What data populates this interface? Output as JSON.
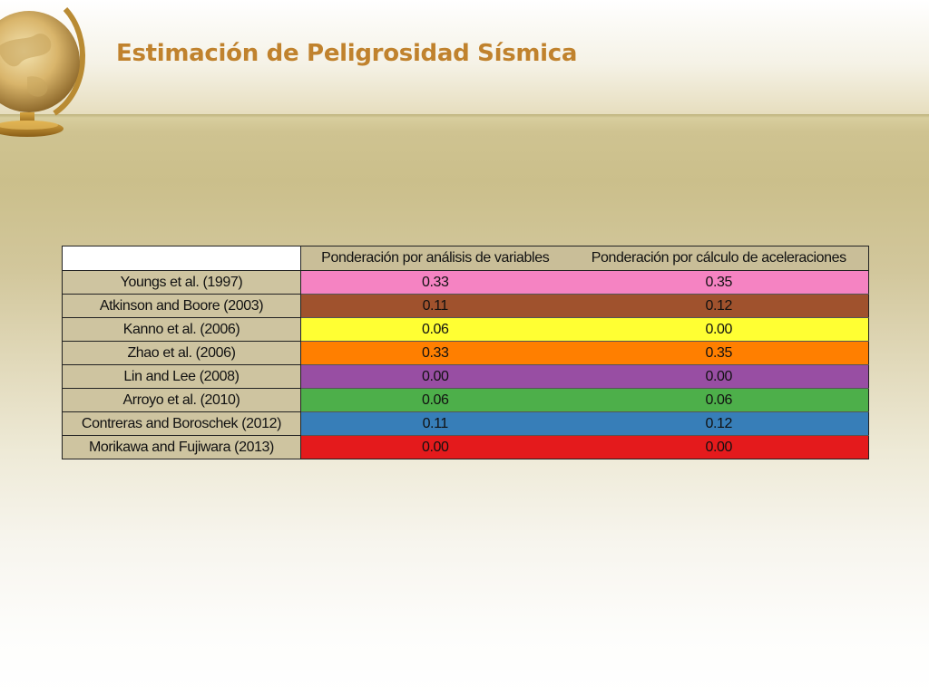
{
  "slide": {
    "title": "Estimación de Peligrosidad Sísmica"
  },
  "table": {
    "corner_label": "",
    "columns": [
      "Ponderación por análisis de variables",
      "Ponderación por cálculo de aceleraciones"
    ],
    "rows": [
      {
        "model": "Youngs et al. (1997)",
        "values": [
          "0.33",
          "0.35"
        ],
        "color": "#f583c2"
      },
      {
        "model": "Atkinson and Boore (2003)",
        "values": [
          "0.11",
          "0.12"
        ],
        "color": "#a0522d"
      },
      {
        "model": "Kanno et al. (2006)",
        "values": [
          "0.06",
          "0.00"
        ],
        "color": "#ffff33"
      },
      {
        "model": "Zhao et al. (2006)",
        "values": [
          "0.33",
          "0.35"
        ],
        "color": "#ff7f00"
      },
      {
        "model": "Lin and Lee (2008)",
        "values": [
          "0.00",
          "0.00"
        ],
        "color": "#984ea3"
      },
      {
        "model": "Arroyo et al. (2010)",
        "values": [
          "0.06",
          "0.06"
        ],
        "color": "#4daf4a"
      },
      {
        "model": "Contreras and Boroschek (2012)",
        "values": [
          "0.11",
          "0.12"
        ],
        "color": "#377eb8"
      },
      {
        "model": "Morikawa and Fujiwara (2013)",
        "values": [
          "0.00",
          "0.00"
        ],
        "color": "#e41a1c"
      }
    ]
  },
  "decor": {
    "globe_icon": "globe-icon"
  }
}
